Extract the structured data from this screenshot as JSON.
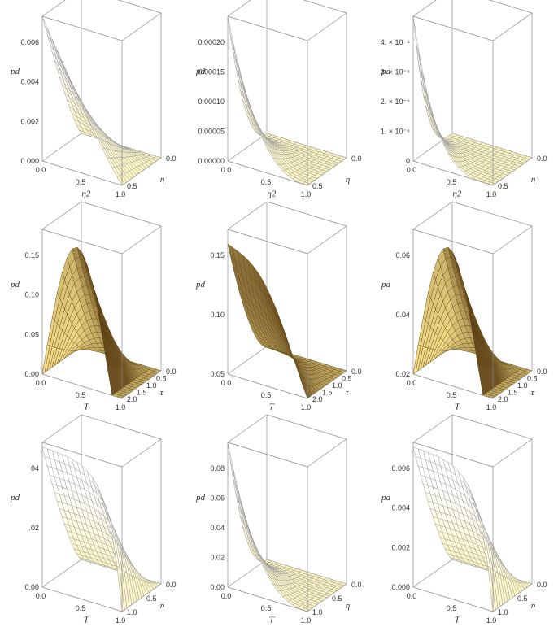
{
  "chart_data": [
    {
      "type": "surface3d",
      "surface": "wedge",
      "x": {
        "label": "η2",
        "ticks": [
          "0.0",
          "0.5",
          "1.0"
        ]
      },
      "y": {
        "label": "η",
        "ticks": [
          "0.0",
          "0.5"
        ]
      },
      "z": {
        "label": "pd",
        "ticks": [
          "0.000",
          "0.002",
          "0.004",
          "0.006"
        ],
        "range": [
          0,
          0.0072
        ]
      },
      "shading": "light"
    },
    {
      "type": "surface3d",
      "surface": "cusp",
      "x": {
        "label": "η2",
        "ticks": [
          "0.0",
          "0.5",
          "1.0"
        ]
      },
      "y": {
        "label": "η",
        "ticks": [
          "0.0",
          "0.5"
        ]
      },
      "z": {
        "label": "pd",
        "ticks": [
          "0.00000",
          "0.00005",
          "0.00010",
          "0.00015",
          "0.00020"
        ],
        "range": [
          0,
          0.00024
        ]
      },
      "shading": "light"
    },
    {
      "type": "surface3d",
      "surface": "spike",
      "x": {
        "label": "η2",
        "ticks": [
          "0.0",
          "0.5",
          "1.0"
        ]
      },
      "y": {
        "label": "η",
        "ticks": [
          "0.0",
          "0.5"
        ]
      },
      "z": {
        "label": "pd",
        "ticks": [
          "0",
          "1. × 10⁻⁶",
          "2. × 10⁻⁶",
          "3. × 10⁻⁶",
          "4. × 10⁻⁶"
        ],
        "range": [
          0,
          4.4e-06
        ]
      },
      "shading": "light"
    },
    {
      "type": "surface3d",
      "surface": "dome",
      "x": {
        "label": "T",
        "ticks": [
          "0.0",
          "0.5",
          "1.0"
        ]
      },
      "y": {
        "label": "τ",
        "ticks": [
          "0.0",
          "0.5",
          "1.0",
          "1.5",
          "2.0"
        ]
      },
      "z": {
        "label": "pd",
        "ticks": [
          "0.00",
          "0.05",
          "0.10",
          "0.15"
        ],
        "range": [
          0,
          0.18
        ]
      },
      "shading": "dark"
    },
    {
      "type": "surface3d",
      "surface": "wave",
      "x": {
        "label": "T",
        "ticks": [
          "0.0",
          "0.5",
          "1.0"
        ]
      },
      "y": {
        "label": "τ",
        "ticks": [
          "0.0",
          "0.5",
          "1.0",
          "1.5",
          "2.0"
        ]
      },
      "z": {
        "label": "pd",
        "ticks": [
          "0.05",
          "0.10",
          "0.15"
        ],
        "range": [
          0,
          0.18
        ]
      },
      "shading": "dark"
    },
    {
      "type": "surface3d",
      "surface": "dome",
      "x": {
        "label": "T",
        "ticks": [
          "0.0",
          "0.5",
          "1.0"
        ]
      },
      "y": {
        "label": "τ",
        "ticks": [
          "0.0",
          "0.5",
          "1.0",
          "1.5",
          "2.0"
        ]
      },
      "z": {
        "label": "pd",
        "ticks": [
          "0.02",
          "0.04",
          "0.06"
        ],
        "range": [
          0,
          0.07
        ]
      },
      "shading": "dark"
    },
    {
      "type": "surface3d",
      "surface": "plateau",
      "x": {
        "label": "T",
        "ticks": [
          "0.0",
          "0.5",
          "1.0"
        ]
      },
      "y": {
        "label": "η",
        "ticks": [
          "0.0",
          "0.5",
          "1.0"
        ]
      },
      "z": {
        "label": "pd",
        "ticks": [
          "0.00",
          ".02",
          "04"
        ],
        "range": [
          0,
          0.05
        ]
      },
      "shading": "light"
    },
    {
      "type": "surface3d",
      "surface": "cusp",
      "x": {
        "label": "T",
        "ticks": [
          "0.0",
          "0.5",
          "1.0"
        ]
      },
      "y": {
        "label": "η",
        "ticks": [
          "0.0",
          "0.5",
          "1.0"
        ]
      },
      "z": {
        "label": "pd",
        "ticks": [
          "0.00",
          "0.02",
          "0.04",
          "0.06",
          "0.08"
        ],
        "range": [
          0,
          0.1
        ]
      },
      "shading": "light"
    },
    {
      "type": "surface3d",
      "surface": "plateau",
      "x": {
        "label": "T",
        "ticks": [
          "0.0",
          "0.5",
          "1.0"
        ]
      },
      "y": {
        "label": "η",
        "ticks": [
          "0.0",
          "0.5",
          "1.0"
        ]
      },
      "z": {
        "label": "pd",
        "ticks": [
          "0.000",
          "0.002",
          "0.004",
          "0.006"
        ],
        "range": [
          0,
          0.0075
        ]
      },
      "shading": "light"
    }
  ]
}
